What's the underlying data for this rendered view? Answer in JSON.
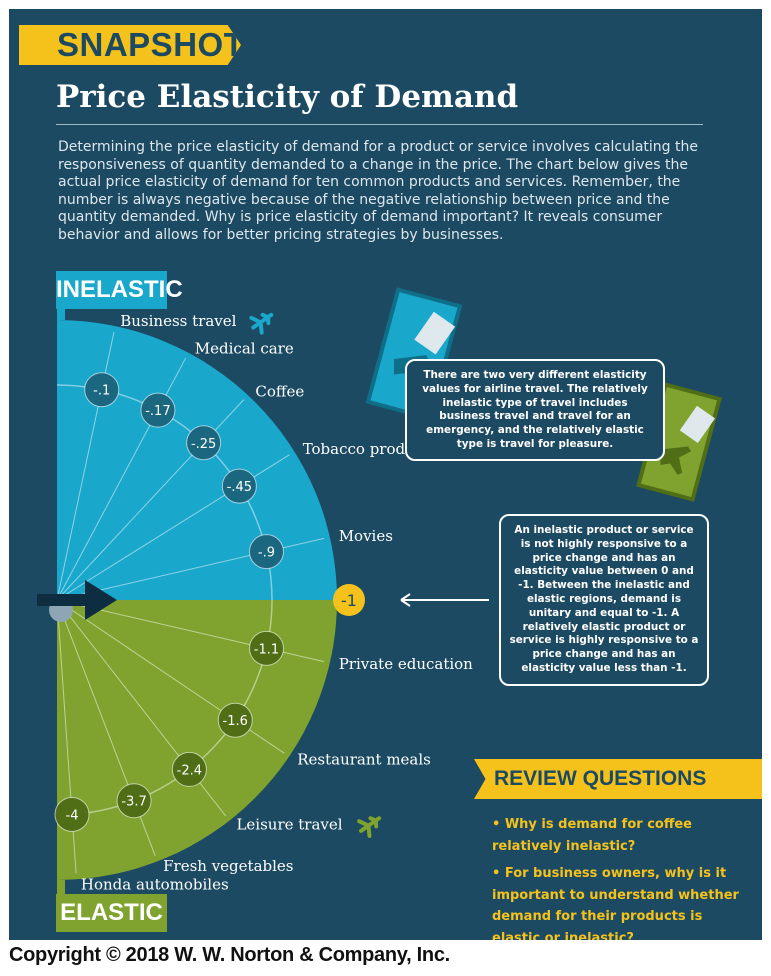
{
  "header": {
    "badge": "SNAPSHOT",
    "title": "Price Elasticity of Demand",
    "intro": "Determining the price elasticity of demand for a product or service involves calculating the responsiveness of quantity demanded to a change in the price. The chart below gives the actual price elasticity of demand for ten common products and services. Remember, the number is always negative because of the negative relationship between price and the quantity demanded. Why is price elasticity of demand important?  It reveals consumer behavior and allows for better pricing strategies by businesses."
  },
  "colors": {
    "panel": "#1c4a63",
    "inelastic": "#1aa7cc",
    "elastic": "#7fa32e",
    "accent": "#f5c21b",
    "circle_dark": "#1c4a63"
  },
  "chart_data": {
    "type": "radial-scale",
    "regions": {
      "top": "INELASTIC",
      "bottom": "ELASTIC"
    },
    "unitary": {
      "label": "-1",
      "value": -1
    },
    "items": [
      {
        "label": "Business travel",
        "value": -0.1,
        "value_label": "-.1",
        "icon": "plane-icon"
      },
      {
        "label": "Medical care",
        "value": -0.17,
        "value_label": "-.17"
      },
      {
        "label": "Coffee",
        "value": -0.25,
        "value_label": "-.25"
      },
      {
        "label": "Tobacco products",
        "value": -0.45,
        "value_label": "-.45"
      },
      {
        "label": "Movies",
        "value": -0.9,
        "value_label": "-.9"
      },
      {
        "label": "Private education",
        "value": -1.1,
        "value_label": "-1.1"
      },
      {
        "label": "Restaurant meals",
        "value": -1.6,
        "value_label": "-1.6"
      },
      {
        "label": "Leisure travel",
        "value": -2.4,
        "value_label": "-2.4",
        "icon": "plane-icon"
      },
      {
        "label": "Fresh vegetables",
        "value": -3.7,
        "value_label": "-3.7"
      },
      {
        "label": "Honda automobiles",
        "value": -4,
        "value_label": "-4"
      }
    ]
  },
  "callouts": {
    "airline": "There are two very different elasticity values for airline travel. The relatively inelastic type of travel includes business travel and travel for an emergency, and the relatively elastic type is travel for pleasure.",
    "definition": "An inelastic product or service is not highly responsive to a price change and has an elasticity value between 0 and -1. Between the inelastic and elastic regions, demand is unitary and equal to -1. A relatively elastic product or service is highly responsive to a price change and has an elasticity value less than -1."
  },
  "review": {
    "heading": "REVIEW QUESTIONS",
    "questions": [
      "• Why is demand for coffee relatively inelastic?",
      "• For business owners, why is it important to understand whether demand for their products is elastic or inelastic?"
    ]
  },
  "footer": {
    "copyright": "Copyright © 2018 W. W. Norton & Company, Inc."
  }
}
